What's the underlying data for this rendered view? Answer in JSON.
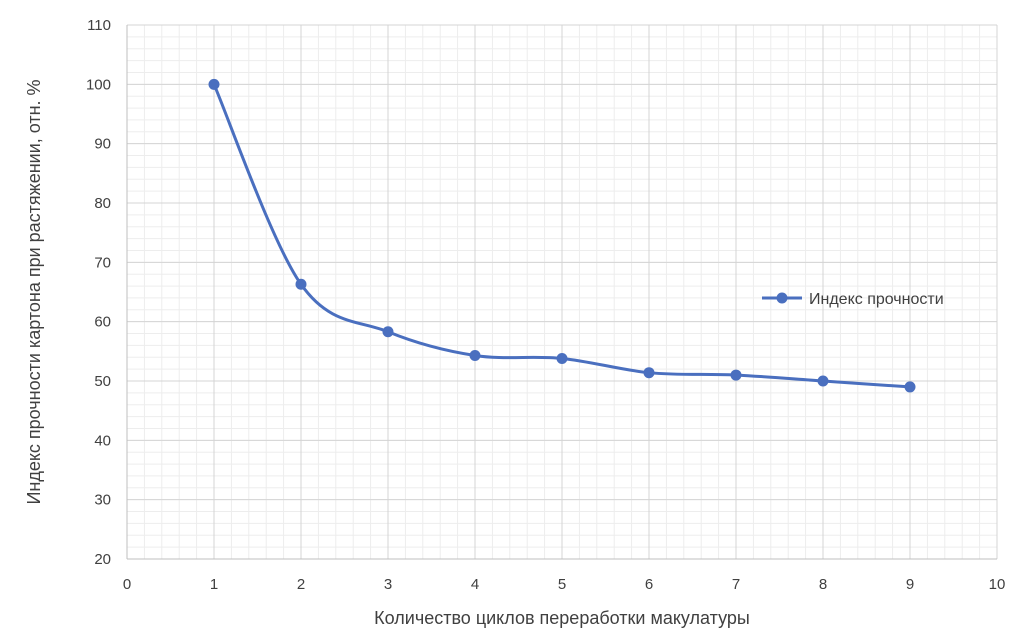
{
  "chart_data": {
    "type": "line",
    "title": "",
    "xlabel": "Количество циклов переработки макулатуры",
    "ylabel": "Индекс прочности картона  при растяжении, отн. %",
    "xlim": [
      0,
      10
    ],
    "ylim": [
      20,
      110
    ],
    "x_ticks": [
      "0",
      "1",
      "2",
      "3",
      "4",
      "5",
      "6",
      "7",
      "8",
      "9",
      "10"
    ],
    "y_ticks": [
      "20",
      "30",
      "40",
      "50",
      "60",
      "70",
      "80",
      "90",
      "100",
      "110"
    ],
    "grid": true,
    "smooth": true,
    "legend_position": "right",
    "series": [
      {
        "name": "Индекс прочности",
        "color": "#4A6FBF",
        "marker": "circle",
        "x": [
          1,
          2,
          3,
          4,
          5,
          6,
          7,
          8,
          9
        ],
        "y": [
          100,
          66.3,
          58.3,
          54.3,
          53.8,
          51.4,
          51.0,
          50.0,
          49.0
        ]
      }
    ]
  }
}
